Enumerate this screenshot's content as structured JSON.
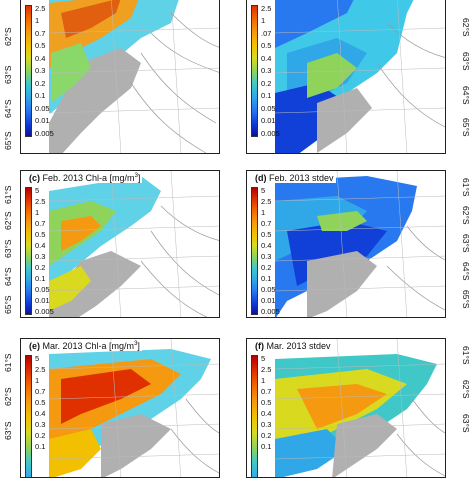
{
  "panels": {
    "a": {
      "title": ""
    },
    "b": {
      "title": ""
    },
    "c": {
      "title_prefix": "(c)",
      "title_text": "Feb. 2013 Chl-a [mg/m",
      "title_sup": "3",
      "title_suffix": "]"
    },
    "d": {
      "title_prefix": "(d)",
      "title_text": "Feb. 2013 stdev"
    },
    "e": {
      "title_prefix": "(e)",
      "title_text": "Mar. 2013 Chl-a [mg/m",
      "title_sup": "3",
      "title_suffix": "]"
    },
    "f": {
      "title_prefix": "(f)",
      "title_text": "Mar. 2013 stdev"
    }
  },
  "colorbar": {
    "chl_ticks": [
      "5",
      "2.5",
      "1",
      "0.7",
      "0.5",
      "0.4",
      "0.3",
      "0.2",
      "0.1",
      "0.05",
      "0.01",
      "0.005"
    ],
    "stdev_ticks_top": [
      "2.5",
      "1",
      ".07",
      "0.5",
      "0.4",
      "0.3",
      "0.2",
      "0.1",
      "0.05",
      "0.01",
      "0.005"
    ],
    "stdev_ticks": [
      "5",
      "2.5",
      "1",
      "0.7",
      "0.5",
      "0.4",
      "0.3",
      "0.2",
      "0.1",
      "0.05",
      "0.01",
      "0.005"
    ],
    "chl_ticks_top": [
      "2.5",
      "1",
      "0.7",
      "0.5",
      "0.4",
      "0.3",
      "0.2",
      "0.1",
      "0.05",
      "0.01",
      "0.005"
    ],
    "chl_ticks_e": [
      "5",
      "2.5",
      "1",
      "0.7",
      "0.5",
      "0.4",
      "0.3",
      "0.2",
      "0.1"
    ],
    "stdev_ticks_f": [
      "5",
      "2.5",
      "1",
      "0.7",
      "0.5",
      "0.4",
      "0.3",
      "0.2",
      "0.1"
    ]
  },
  "latitude_labels": {
    "left_top": [
      "62°S",
      "63°S",
      "64°S",
      "65°S"
    ],
    "right_top": [
      "62°S",
      "63°S",
      "64°S",
      "65°S"
    ],
    "left_mid": [
      "61°S",
      "62°S",
      "63°S",
      "64°S",
      "65°S"
    ],
    "right_mid": [
      "61°S",
      "62°S",
      "63°S",
      "64°S",
      "65°S"
    ],
    "left_bot": [
      "61°S",
      "62°S",
      "63°S"
    ],
    "right_bot": [
      "61°S",
      "62°S",
      "63°S"
    ]
  },
  "colors": {
    "colorbar": [
      "#b40000",
      "#e03000",
      "#f26a00",
      "#f59a10",
      "#f2c000",
      "#d9d920",
      "#8fd35a",
      "#40c8c8",
      "#30a8e8",
      "#2878f0",
      "#1040d8",
      "#0a10a0"
    ]
  }
}
